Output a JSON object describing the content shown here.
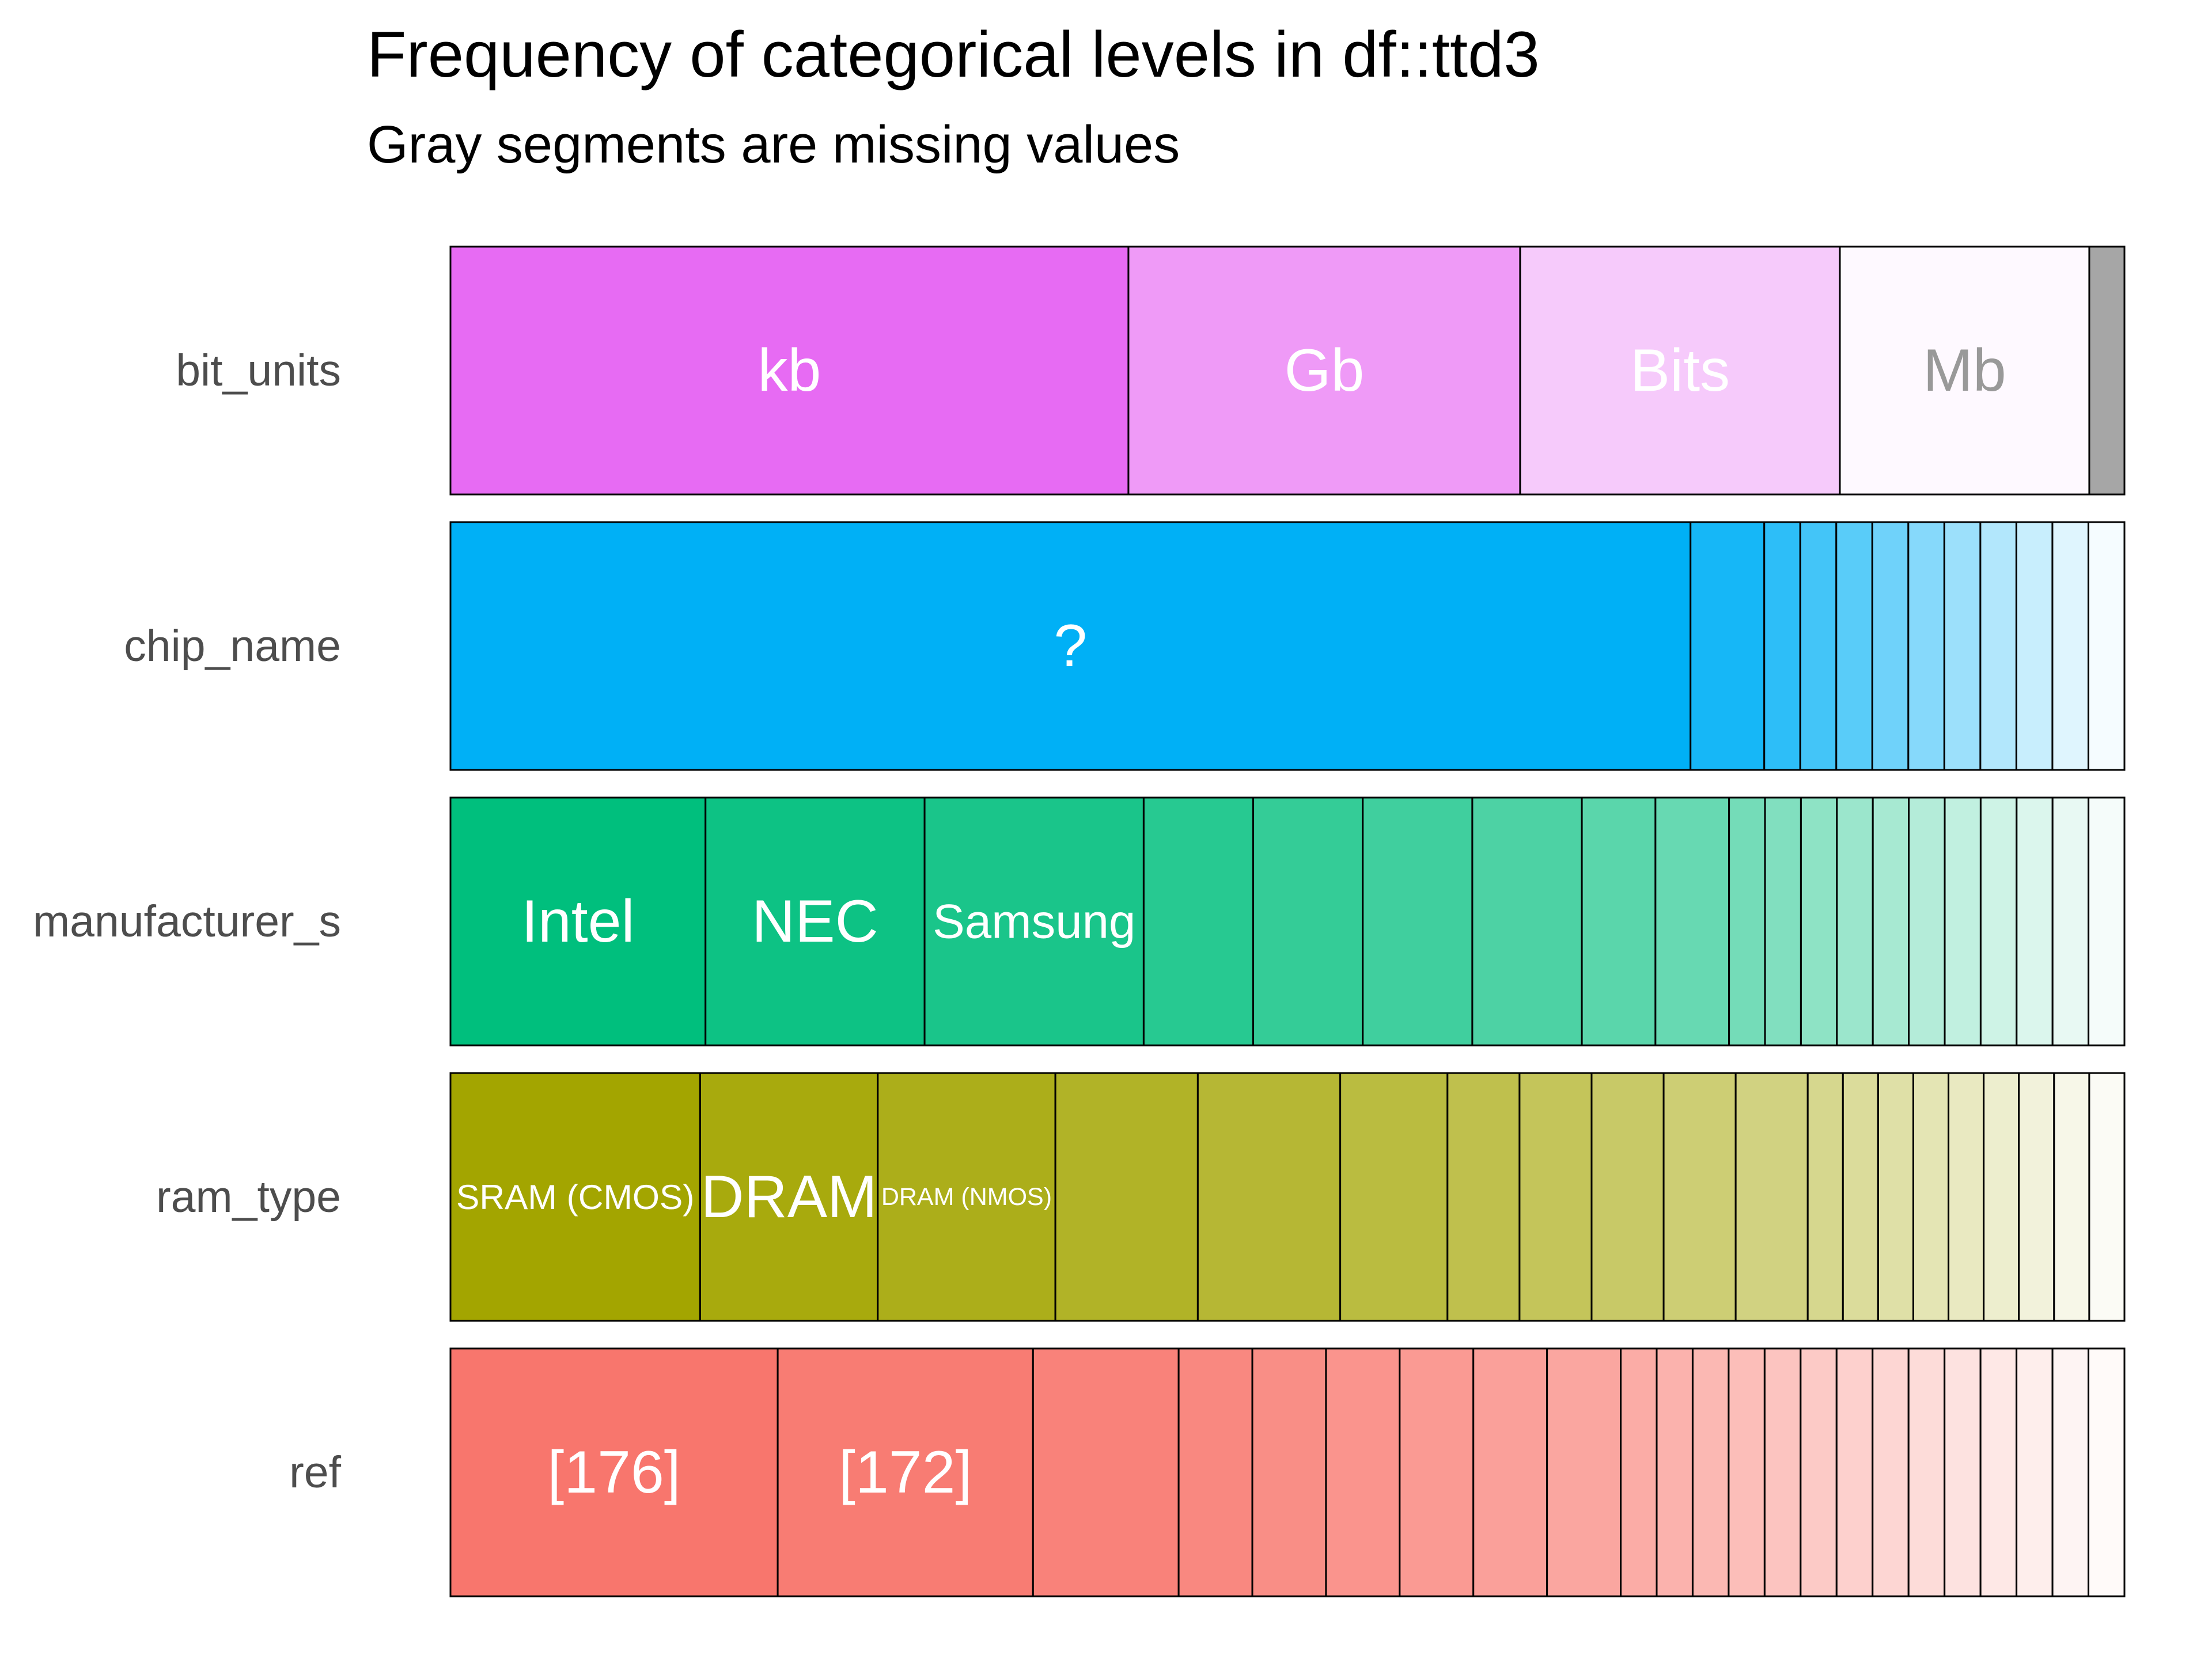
{
  "chart_data": {
    "type": "bar",
    "orientation": "horizontal",
    "stacked": true,
    "title": "Frequency of categorical levels in df::ttd3",
    "subtitle": "Gray segments are missing values",
    "value_unit": "proportion",
    "variables": [
      {
        "name": "bit_units",
        "color": "#E76BF3",
        "segments": [
          {
            "label": "kb",
            "value": 0.405,
            "label_color": "#ffffff"
          },
          {
            "label": "Gb",
            "value": 0.234,
            "label_color": "#ffffff"
          },
          {
            "label": "Bits",
            "value": 0.191,
            "label_color": "#ffffff"
          },
          {
            "label": "Mb",
            "value": 0.149,
            "label_color": "#999999"
          },
          {
            "label": "",
            "value": 0.021,
            "missing": true
          }
        ]
      },
      {
        "name": "chip_name",
        "color": "#00B0F6",
        "segments": [
          {
            "label": "?",
            "value": 0.723,
            "label_color": "#ffffff"
          },
          {
            "value": 0.043
          },
          {
            "value": 0.021
          },
          {
            "value": 0.021
          },
          {
            "value": 0.021
          },
          {
            "value": 0.021
          },
          {
            "value": 0.021
          },
          {
            "value": 0.021
          },
          {
            "value": 0.021
          },
          {
            "value": 0.021
          },
          {
            "value": 0.021
          },
          {
            "value": 0.021
          }
        ]
      },
      {
        "name": "manufacturer_s",
        "color": "#00BF7D",
        "segments": [
          {
            "label": "Intel",
            "value": 0.149,
            "label_color": "#ffffff"
          },
          {
            "label": "NEC",
            "value": 0.128,
            "label_color": "#ffffff"
          },
          {
            "label": "Samsung",
            "value": 0.128,
            "label_color": "#ffffff"
          },
          {
            "value": 0.064
          },
          {
            "value": 0.064
          },
          {
            "value": 0.064
          },
          {
            "value": 0.064
          },
          {
            "value": 0.043
          },
          {
            "value": 0.043
          },
          {
            "value": 0.021
          },
          {
            "value": 0.021
          },
          {
            "value": 0.021
          },
          {
            "value": 0.021
          },
          {
            "value": 0.021
          },
          {
            "value": 0.021
          },
          {
            "value": 0.021
          },
          {
            "value": 0.021
          },
          {
            "value": 0.021
          },
          {
            "value": 0.021
          },
          {
            "value": 0.021
          }
        ]
      },
      {
        "name": "ram_type",
        "color": "#A3A500",
        "segments": [
          {
            "label": "SRAM (CMOS)",
            "value": 0.149,
            "label_color": "#ffffff"
          },
          {
            "label": "DRAM",
            "value": 0.106,
            "label_color": "#ffffff"
          },
          {
            "label": "DRAM (NMOS)",
            "value": 0.106,
            "label_color": "#ffffff"
          },
          {
            "value": 0.085
          },
          {
            "value": 0.085
          },
          {
            "value": 0.064
          },
          {
            "value": 0.043
          },
          {
            "value": 0.043
          },
          {
            "value": 0.043
          },
          {
            "value": 0.043
          },
          {
            "value": 0.043
          },
          {
            "value": 0.021
          },
          {
            "value": 0.021
          },
          {
            "value": 0.021
          },
          {
            "value": 0.021
          },
          {
            "value": 0.021
          },
          {
            "value": 0.021
          },
          {
            "value": 0.021
          },
          {
            "value": 0.021
          },
          {
            "value": 0.021
          }
        ]
      },
      {
        "name": "ref",
        "color": "#F8766D",
        "segments": [
          {
            "label": "[176]",
            "value": 0.191,
            "label_color": "#ffffff"
          },
          {
            "label": "[172]",
            "value": 0.149,
            "label_color": "#ffffff"
          },
          {
            "value": 0.085
          },
          {
            "value": 0.043
          },
          {
            "value": 0.043
          },
          {
            "value": 0.043
          },
          {
            "value": 0.043
          },
          {
            "value": 0.043
          },
          {
            "value": 0.043
          },
          {
            "value": 0.021
          },
          {
            "value": 0.021
          },
          {
            "value": 0.021
          },
          {
            "value": 0.021
          },
          {
            "value": 0.021
          },
          {
            "value": 0.021
          },
          {
            "value": 0.021
          },
          {
            "value": 0.021
          },
          {
            "value": 0.021
          },
          {
            "value": 0.021
          },
          {
            "value": 0.021
          },
          {
            "value": 0.021
          },
          {
            "value": 0.021
          },
          {
            "value": 0.021
          }
        ]
      }
    ],
    "missing_color": "#A6A6A6",
    "grid": false,
    "legend": "none"
  }
}
